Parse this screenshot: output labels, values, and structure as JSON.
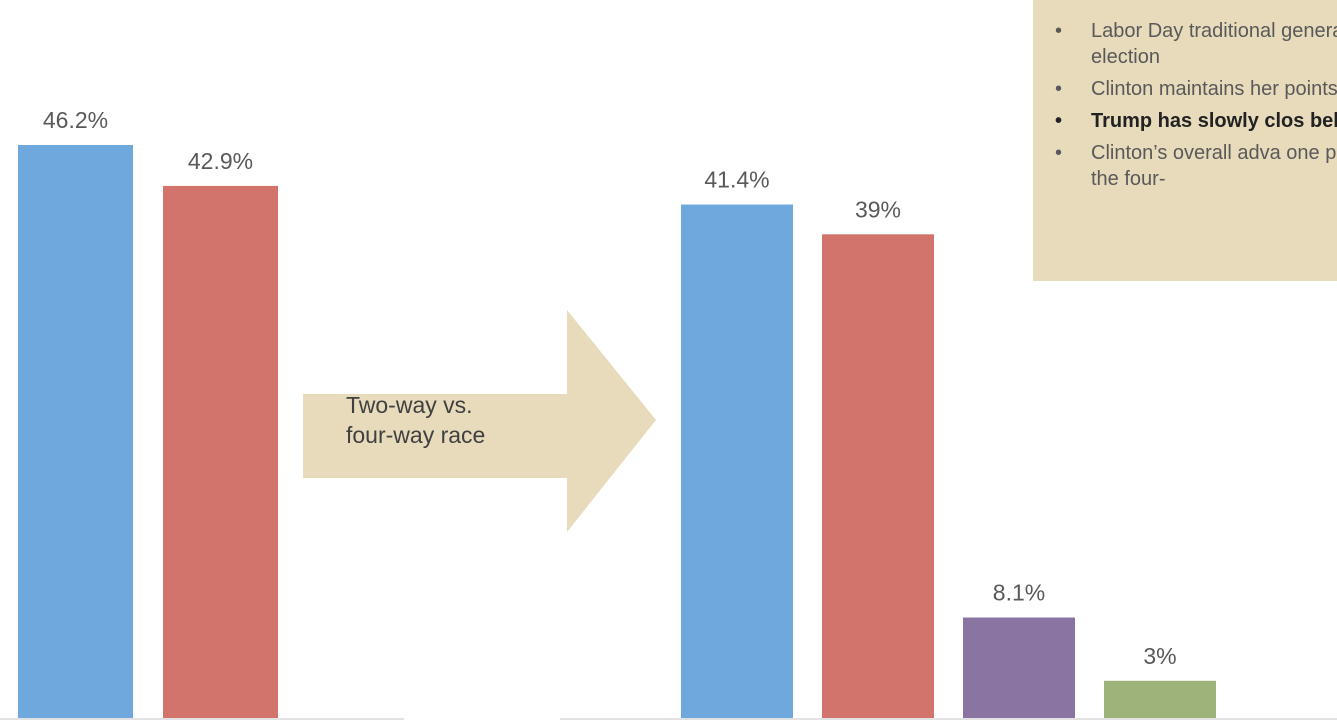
{
  "colors": {
    "clinton": "#6FA8DC",
    "trump": "#D2746C",
    "johnson": "#8A74A2",
    "stein": "#9EB37A",
    "panel": "#E7DBBC",
    "label": "#595959",
    "axis": "#D9D9D9"
  },
  "arrow_text": [
    "Two-way vs.",
    "four-way race"
  ],
  "notes": [
    {
      "bullet": "•",
      "text": "Labor Day traditional general election",
      "bold": false
    },
    {
      "bullet": "•",
      "text": "Clinton maintains her points",
      "bold": false
    },
    {
      "bullet": "•",
      "text": "Trump has slowly clos behind",
      "bold": true
    },
    {
      "bullet": "•",
      "text": "Clinton’s overall adva one point in the four-",
      "bold": false
    }
  ],
  "chart_data": [
    {
      "type": "bar",
      "ylim": [
        0,
        50
      ],
      "values": [
        46.2,
        42.9
      ],
      "labels": [
        "46.2%",
        "42.9%"
      ],
      "colors": [
        "#6FA8DC",
        "#D2746C"
      ]
    },
    {
      "type": "bar",
      "ylim": [
        0,
        50
      ],
      "values": [
        41.4,
        39,
        8.1,
        3
      ],
      "labels": [
        "41.4%",
        "39%",
        "8.1%",
        "3%"
      ],
      "colors": [
        "#6FA8DC",
        "#D2746C",
        "#8A74A2",
        "#9EB37A"
      ]
    }
  ]
}
